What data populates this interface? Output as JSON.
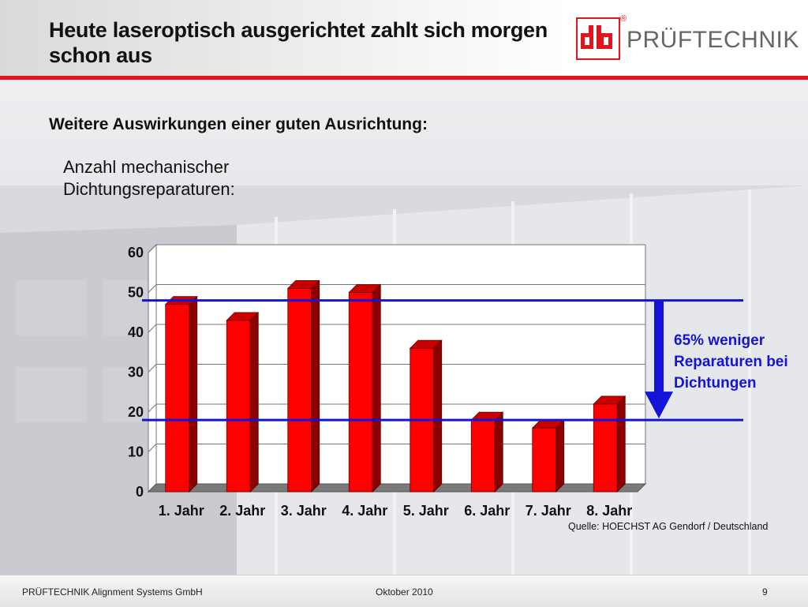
{
  "slide": {
    "title": "Heute laseroptisch ausgerichtet zahlt sich morgen schon aus",
    "subtitle": "Weitere Auswirkungen einer guten Ausrichtung:",
    "chart_heading": "Anzahl mechanischer Dichtungsreparaturen:",
    "source": "Quelle: HOECHST AG Gendorf / Deutschland",
    "annotation": "65% weniger Reparaturen bei Dichtungen",
    "brand": "PRÜFTECHNIK",
    "logo_mark": "db",
    "registered": "®"
  },
  "footer": {
    "company": "PRÜFTECHNIK Alignment Systems GmbH",
    "date": "Oktober 2010",
    "page": "9"
  },
  "colors": {
    "accent": "#e3141b",
    "bar_front": "#ff0000",
    "bar_side": "#8b0000",
    "bar_top": "#c80000",
    "reference_line": "#1414d8",
    "annotation_text": "#1414d8"
  },
  "chart_data": {
    "type": "bar",
    "categories": [
      "1. Jahr",
      "2. Jahr",
      "3. Jahr",
      "4. Jahr",
      "5. Jahr",
      "6. Jahr",
      "7. Jahr",
      "8. Jahr"
    ],
    "values": [
      47,
      43,
      51,
      50,
      36,
      18,
      16,
      22
    ],
    "ylim": [
      0,
      60
    ],
    "yticks": [
      0,
      10,
      20,
      30,
      40,
      50,
      60
    ],
    "grid": true,
    "reference_lines": [
      47,
      17
    ],
    "arrow": {
      "from": 47,
      "to": 17,
      "direction": "down"
    }
  }
}
